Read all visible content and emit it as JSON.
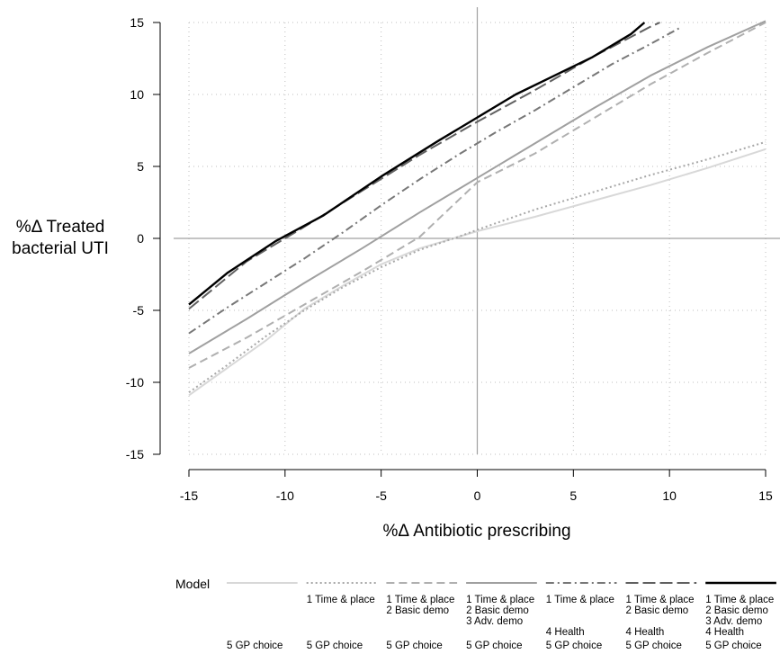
{
  "chart_data": {
    "type": "line",
    "xlabel": "%Δ Antibiotic prescribing",
    "ylabel_lines": [
      "%Δ Treated",
      "bacterial UTI"
    ],
    "xlim": [
      -15,
      15
    ],
    "ylim": [
      -15,
      15
    ],
    "x_ticks": [
      -15,
      -10,
      -5,
      0,
      5,
      10,
      15
    ],
    "y_ticks": [
      -15,
      -10,
      -5,
      0,
      5,
      10,
      15
    ],
    "x_tick_labels": [
      "-15",
      "-10",
      "-5",
      "0",
      "5",
      "10",
      "15"
    ],
    "y_tick_labels": [
      "-15",
      "-10",
      "-5",
      "0",
      "5",
      "10",
      "15"
    ],
    "grid": true,
    "grid_style": "dotted",
    "reference_lines": {
      "x": 0,
      "y": 0
    },
    "legend_title": "Model",
    "legend_position": "bottom",
    "series": [
      {
        "color": "#d8d8d8",
        "dash": "",
        "width": 2,
        "labels": [
          "",
          "",
          "",
          "",
          "5  GP choice"
        ],
        "points": [
          [
            -15,
            -10.9
          ],
          [
            -13,
            -9.0
          ],
          [
            -11,
            -7.1
          ],
          [
            -9,
            -4.9
          ],
          [
            -7,
            -3.3
          ],
          [
            -5,
            -1.8
          ],
          [
            -3,
            -0.7
          ],
          [
            -1,
            0.1
          ],
          [
            0,
            0.5
          ],
          [
            3,
            1.5
          ],
          [
            6,
            2.6
          ],
          [
            9,
            3.7
          ],
          [
            12,
            4.9
          ],
          [
            15,
            6.2
          ]
        ]
      },
      {
        "color": "#a8a8a8",
        "dash": "2,3",
        "width": 2,
        "labels": [
          "1  Time & place",
          "",
          "",
          "",
          "5  GP choice"
        ],
        "points": [
          [
            -15,
            -10.7
          ],
          [
            -13,
            -8.8
          ],
          [
            -11,
            -6.8
          ],
          [
            -9,
            -5.0
          ],
          [
            -7,
            -3.4
          ],
          [
            -5,
            -2.0
          ],
          [
            -3,
            -0.8
          ],
          [
            -1,
            0.1
          ],
          [
            0,
            0.6
          ],
          [
            3,
            2.0
          ],
          [
            6,
            3.2
          ],
          [
            9,
            4.4
          ],
          [
            12,
            5.5
          ],
          [
            15,
            6.7
          ]
        ]
      },
      {
        "color": "#b0b0b0",
        "dash": "9,5",
        "width": 2,
        "labels": [
          "1  Time & place",
          "2  Basic demo",
          "",
          "",
          "5  GP choice"
        ],
        "points": [
          [
            -15,
            -9.0
          ],
          [
            -12,
            -6.9
          ],
          [
            -9,
            -4.6
          ],
          [
            -6,
            -2.3
          ],
          [
            -3,
            0.1
          ],
          [
            0,
            3.9
          ],
          [
            3,
            5.9
          ],
          [
            6,
            8.3
          ],
          [
            9,
            10.7
          ],
          [
            12,
            12.9
          ],
          [
            15,
            15.0
          ]
        ]
      },
      {
        "color": "#a0a0a0",
        "dash": "",
        "width": 2,
        "labels": [
          "1  Time & place",
          "2  Basic demo",
          "3  Adv. demo",
          "",
          "5  GP choice"
        ],
        "points": [
          [
            -15,
            -8.0
          ],
          [
            -12,
            -5.6
          ],
          [
            -9,
            -3.1
          ],
          [
            -6,
            -0.7
          ],
          [
            -3,
            1.8
          ],
          [
            0,
            4.2
          ],
          [
            3,
            6.6
          ],
          [
            6,
            9.0
          ],
          [
            9,
            11.3
          ],
          [
            12,
            13.3
          ],
          [
            15,
            15.1
          ]
        ]
      },
      {
        "color": "#787878",
        "dash": "9,4,2,4",
        "width": 2,
        "labels": [
          "1  Time & place",
          "",
          "",
          "4  Health",
          "5  GP choice"
        ],
        "points": [
          [
            -15,
            -6.6
          ],
          [
            -13,
            -4.8
          ],
          [
            -11,
            -3.1
          ],
          [
            -9,
            -1.4
          ],
          [
            -7,
            0.4
          ],
          [
            -5,
            2.3
          ],
          [
            -3,
            4.1
          ],
          [
            -1,
            5.8
          ],
          [
            1,
            7.4
          ],
          [
            3,
            8.9
          ],
          [
            5,
            10.5
          ],
          [
            7,
            12.1
          ],
          [
            9,
            13.5
          ],
          [
            10.5,
            14.6
          ]
        ]
      },
      {
        "color": "#606060",
        "dash": "14,5",
        "width": 2,
        "labels": [
          "1  Time & place",
          "2  Basic demo",
          "",
          "4  Health",
          "5  GP choice"
        ],
        "points": [
          [
            -15,
            -4.9
          ],
          [
            -12,
            -1.6
          ],
          [
            -9,
            0.8
          ],
          [
            -6,
            3.3
          ],
          [
            -3,
            5.8
          ],
          [
            0,
            8.1
          ],
          [
            3,
            10.3
          ],
          [
            6,
            12.6
          ],
          [
            9,
            14.7
          ],
          [
            9.5,
            15.0
          ]
        ]
      },
      {
        "color": "#000000",
        "dash": "",
        "width": 2.4,
        "labels": [
          "1  Time & place",
          "2  Basic demo",
          "3  Adv. demo",
          "4  Health",
          "5  GP choice"
        ],
        "points": [
          [
            -15,
            -4.6
          ],
          [
            -13,
            -2.4
          ],
          [
            -10.5,
            -0.2
          ],
          [
            -8,
            1.6
          ],
          [
            -5,
            4.3
          ],
          [
            -2,
            6.8
          ],
          [
            0,
            8.4
          ],
          [
            2,
            10.0
          ],
          [
            4,
            11.3
          ],
          [
            6,
            12.6
          ],
          [
            8,
            14.2
          ],
          [
            8.7,
            15.0
          ]
        ]
      }
    ]
  }
}
